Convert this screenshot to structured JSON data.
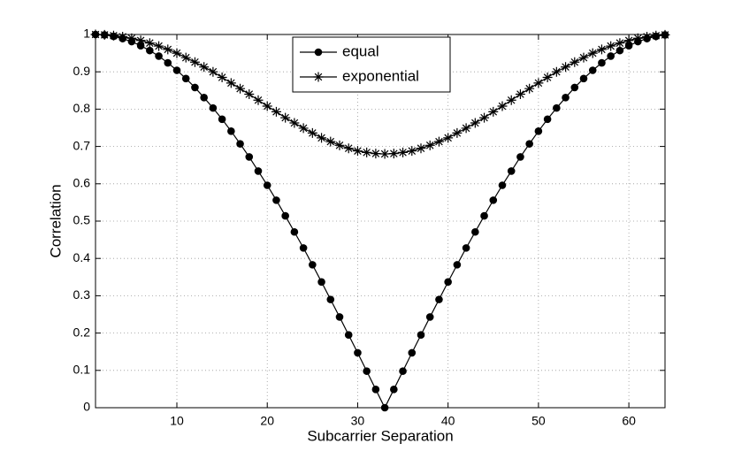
{
  "chart_data": {
    "type": "line",
    "xlabel": "Subcarrier Separation",
    "ylabel": "Correlation",
    "x": [
      1,
      2,
      3,
      4,
      5,
      6,
      7,
      8,
      9,
      10,
      11,
      12,
      13,
      14,
      15,
      16,
      17,
      18,
      19,
      20,
      21,
      22,
      23,
      24,
      25,
      26,
      27,
      28,
      29,
      30,
      31,
      32,
      33,
      34,
      35,
      36,
      37,
      38,
      39,
      40,
      41,
      42,
      43,
      44,
      45,
      46,
      47,
      48,
      49,
      50,
      51,
      52,
      53,
      54,
      55,
      56,
      57,
      58,
      59,
      60,
      61,
      62,
      63,
      64
    ],
    "series": [
      {
        "name": "equal",
        "color": "#000000",
        "marker": "circle",
        "values": [
          1,
          0.999,
          0.995,
          0.989,
          0.981,
          0.97,
          0.957,
          0.942,
          0.924,
          0.904,
          0.882,
          0.858,
          0.831,
          0.803,
          0.773,
          0.741,
          0.707,
          0.672,
          0.634,
          0.596,
          0.556,
          0.514,
          0.471,
          0.428,
          0.383,
          0.337,
          0.29,
          0.243,
          0.195,
          0.147,
          0.098,
          0.049,
          0,
          0.049,
          0.098,
          0.147,
          0.195,
          0.243,
          0.29,
          0.337,
          0.383,
          0.428,
          0.471,
          0.514,
          0.556,
          0.596,
          0.634,
          0.672,
          0.707,
          0.741,
          0.773,
          0.803,
          0.831,
          0.858,
          0.882,
          0.904,
          0.924,
          0.942,
          0.957,
          0.97,
          0.981,
          0.989,
          0.995,
          0.999
        ]
      },
      {
        "name": "exponential",
        "color": "#000000",
        "marker": "asterisk",
        "values": [
          1,
          0.999,
          0.997,
          0.994,
          0.99,
          0.984,
          0.977,
          0.969,
          0.96,
          0.95,
          0.938,
          0.926,
          0.913,
          0.9,
          0.885,
          0.87,
          0.855,
          0.84,
          0.824,
          0.808,
          0.793,
          0.777,
          0.763,
          0.749,
          0.736,
          0.723,
          0.713,
          0.703,
          0.695,
          0.688,
          0.684,
          0.681,
          0.68,
          0.681,
          0.684,
          0.688,
          0.695,
          0.703,
          0.713,
          0.723,
          0.736,
          0.749,
          0.763,
          0.777,
          0.793,
          0.808,
          0.824,
          0.84,
          0.855,
          0.87,
          0.885,
          0.9,
          0.913,
          0.926,
          0.938,
          0.95,
          0.96,
          0.969,
          0.977,
          0.984,
          0.99,
          0.994,
          0.997,
          0.999
        ]
      }
    ],
    "xlim": [
      1,
      64
    ],
    "xticks": [
      10,
      20,
      30,
      40,
      50,
      60
    ],
    "ylim": [
      0,
      1
    ],
    "yticks": [
      0,
      0.1,
      0.2,
      0.3,
      0.4,
      0.5,
      0.6,
      0.7,
      0.8,
      0.9,
      1
    ],
    "grid": true,
    "legend": "top-center"
  }
}
